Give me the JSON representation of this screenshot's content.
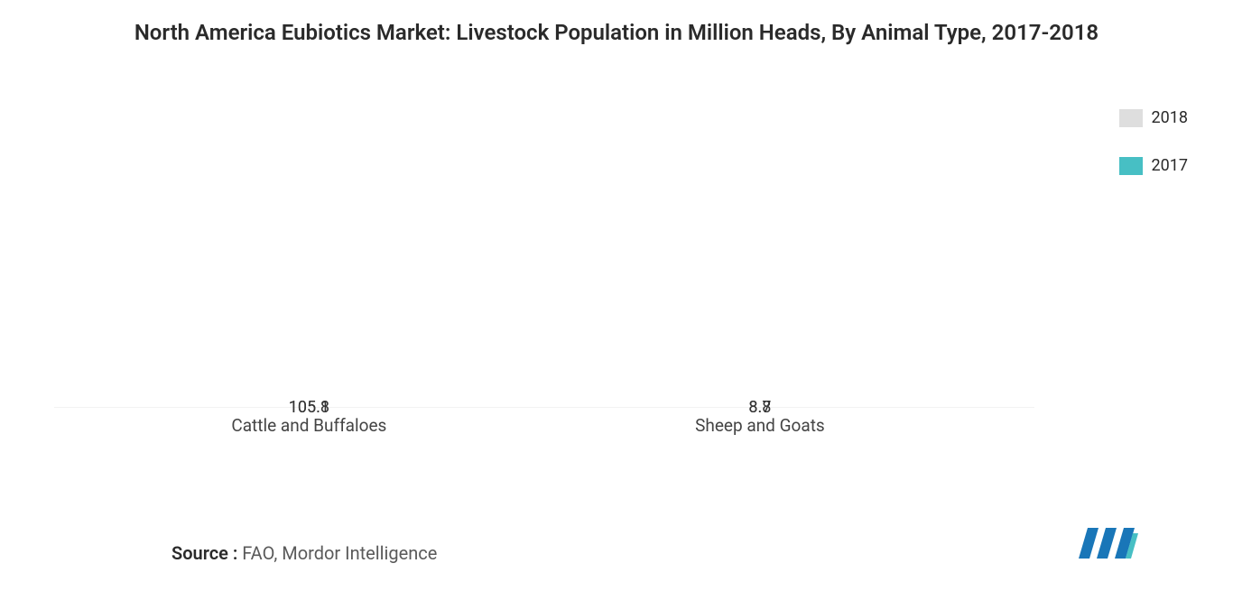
{
  "title": "North America Eubiotics Market: Livestock Population in Million Heads, By Animal Type, 2017-2018",
  "chart": {
    "type": "bar-stacked",
    "categories": [
      "Cattle and Buffaloes",
      "Sheep and Goats"
    ],
    "series": [
      {
        "name": "2018",
        "color": "#dedede",
        "values": [
          105.8,
          8.8
        ]
      },
      {
        "name": "2017",
        "color": "#47bfc4",
        "values": [
          105.1,
          8.7
        ]
      }
    ],
    "max_stack": 211,
    "label_fontsize": 18,
    "label_color": "#333333",
    "category_fontsize": 19,
    "category_color": "#444444",
    "background_color": "#ffffff",
    "bar_group_positions_pct": [
      26,
      72
    ],
    "bar_width_pct": 34
  },
  "legend": {
    "items": [
      {
        "label": "2018",
        "color": "#dedede"
      },
      {
        "label": "2017",
        "color": "#47bfc4"
      }
    ],
    "fontsize": 18
  },
  "source": {
    "label": "Source :",
    "text": " FAO, Mordor Intelligence"
  },
  "logo": {
    "bar_color": "#1976b8",
    "accent_color": "#47bfc4"
  }
}
